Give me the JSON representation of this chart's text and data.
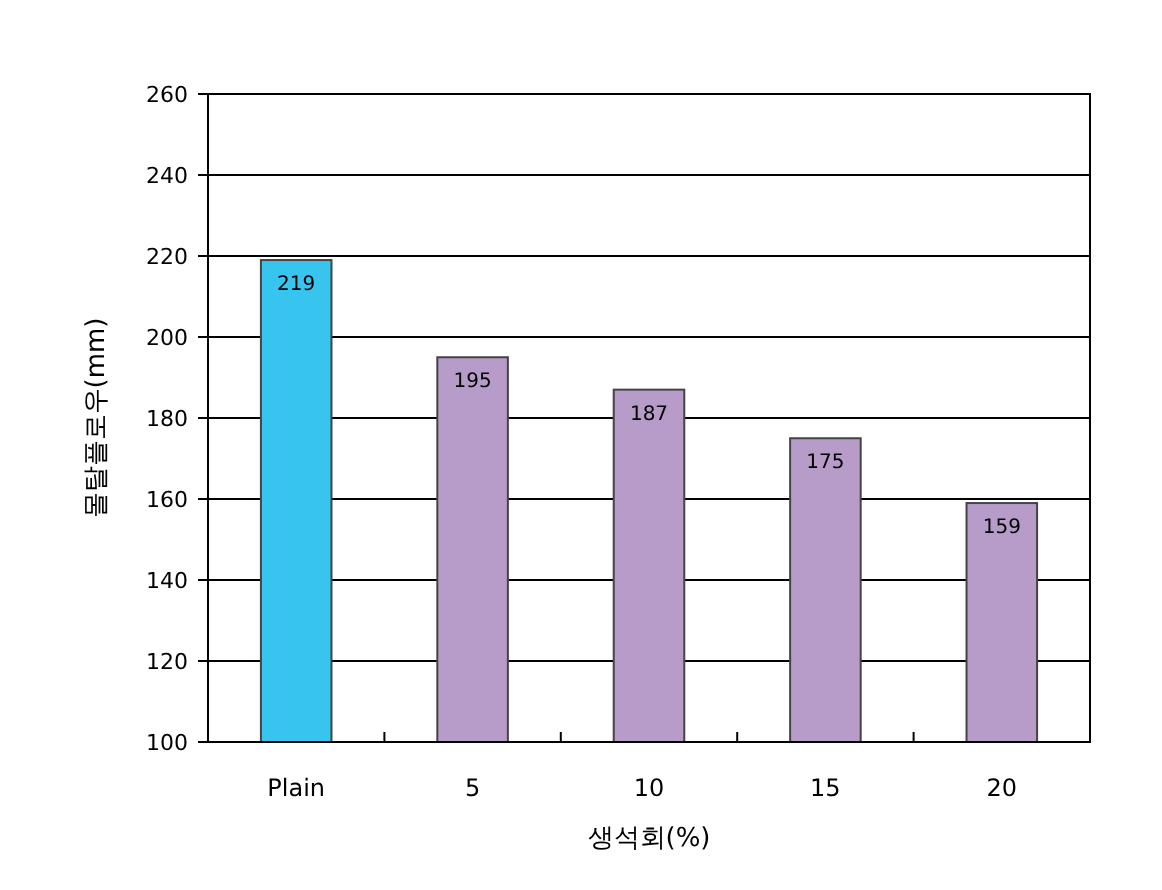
{
  "chart_data": {
    "type": "bar",
    "xlabel": "생석회(%)",
    "ylabel": "몰탈플로우(mm)",
    "categories": [
      "Plain",
      "5",
      "10",
      "15",
      "20"
    ],
    "values": [
      219,
      195,
      187,
      175,
      159
    ],
    "colors": [
      "#37c5f0",
      "#b79bc9",
      "#b79bc9",
      "#b79bc9",
      "#b79bc9"
    ],
    "ylim": [
      100,
      260
    ],
    "yticks": [
      100,
      120,
      140,
      160,
      180,
      200,
      220,
      240,
      260
    ],
    "grid": "y",
    "data_labels": true
  }
}
